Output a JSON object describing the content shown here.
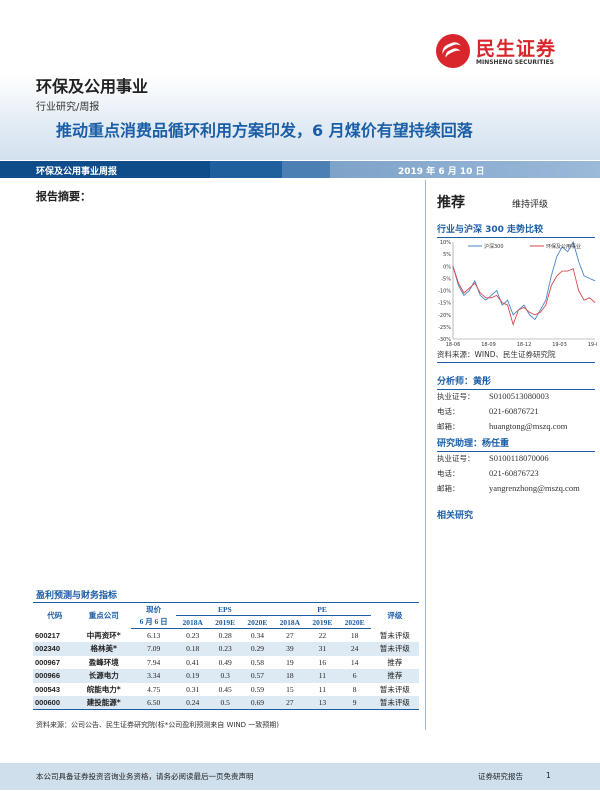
{
  "logo": {
    "cn": "民生证券",
    "en": "MINSHENG SECURITIES"
  },
  "header": {
    "industry": "环保及公用事业",
    "type": "行业研究/周报",
    "headline": "推动重点消费品循环利用方案印发，6 月煤价有望持续回落"
  },
  "bar": {
    "left": "环保及公用事业周报",
    "date": "2019 年 6 月 10 日"
  },
  "summary_title": "报告摘要：",
  "rating": {
    "value": "推荐",
    "note": "维持评级"
  },
  "chart": {
    "title": "行业与沪深 300 走势比较",
    "y_ticks": [
      "10%",
      "5%",
      "0%",
      "-5%",
      "-10%",
      "-15%",
      "-20%",
      "-25%",
      "-30%"
    ],
    "x_ticks": [
      "18-06",
      "18-09",
      "18-12",
      "19-03",
      "19-06"
    ],
    "ylim": [
      -30,
      10
    ],
    "series": [
      {
        "name": "沪深300",
        "color": "#4a86c8",
        "values": [
          0,
          -8,
          -12,
          -10,
          -6,
          -12,
          -14,
          -12,
          -10,
          -16,
          -14,
          -20,
          -18,
          -16,
          -20,
          -22,
          -18,
          -14,
          -4,
          4,
          8,
          6,
          10,
          2,
          -4,
          -5,
          -6
        ]
      },
      {
        "name": "环保及公用事业",
        "color": "#d9464a",
        "values": [
          0,
          -7,
          -11,
          -9,
          -7,
          -11,
          -13,
          -13,
          -12,
          -15,
          -16,
          -24,
          -18,
          -17,
          -19,
          -20,
          -19,
          -16,
          -8,
          -4,
          -2,
          -2,
          -1,
          -10,
          -14,
          -13,
          -15
        ]
      }
    ],
    "source": "资料来源：WIND、民生证券研究院"
  },
  "analyst": {
    "title": "分析师：黄彤",
    "rows": [
      {
        "k": "执业证号：",
        "v": "S0100513080003"
      },
      {
        "k": "电话：",
        "v": "021-60876721"
      },
      {
        "k": "邮箱：",
        "v": "huangtong@mszq.com"
      }
    ]
  },
  "assistant": {
    "title": "研究助理：杨任重",
    "rows": [
      {
        "k": "执业证号：",
        "v": "S0100118070006"
      },
      {
        "k": "电话：",
        "v": "021-60876723"
      },
      {
        "k": "邮箱：",
        "v": "yangrenzhong@mszq.com"
      }
    ]
  },
  "related": "相关研究",
  "table": {
    "title": "盈利预测与财务指标",
    "headers": {
      "code": "代码",
      "company": "重点公司",
      "price": "现价",
      "price_date": "6 月 6 日",
      "eps": "EPS",
      "pe": "PE",
      "rating": "评级",
      "years": [
        "2018A",
        "2019E",
        "2020E",
        "2018A",
        "2019E",
        "2020E"
      ]
    },
    "rows": [
      [
        "600217",
        "中再资环*",
        "6.13",
        "0.23",
        "0.28",
        "0.34",
        "27",
        "22",
        "18",
        "暂未评级"
      ],
      [
        "002340",
        "格林美*",
        "7.09",
        "0.18",
        "0.23",
        "0.29",
        "39",
        "31",
        "24",
        "暂未评级"
      ],
      [
        "000967",
        "盈峰环境",
        "7.94",
        "0.41",
        "0.49",
        "0.58",
        "19",
        "16",
        "14",
        "推荐"
      ],
      [
        "000966",
        "长源电力",
        "3.34",
        "0.19",
        "0.3",
        "0.57",
        "18",
        "11",
        "6",
        "推荐"
      ],
      [
        "000543",
        "皖能电力*",
        "4.75",
        "0.31",
        "0.45",
        "0.59",
        "15",
        "11",
        "8",
        "暂未评级"
      ],
      [
        "000600",
        "建投能源*",
        "6.50",
        "0.24",
        "0.5",
        "0.69",
        "27",
        "13",
        "9",
        "暂未评级"
      ]
    ],
    "source": "资料来源：公司公告、民生证券研究院(标*公司盈利预测来自 WIND 一致预期)"
  },
  "footer": {
    "disclaimer": "本公司具备证券投资咨询业务资格，请务必阅读最后一页免责声明",
    "label": "证券研究报告",
    "page": "1"
  }
}
